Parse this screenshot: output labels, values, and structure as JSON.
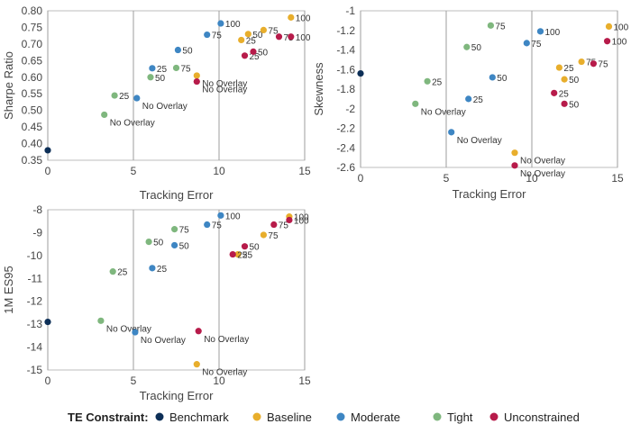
{
  "colors": {
    "Benchmark": "#0d2f57",
    "Baseline": "#e8ae2c",
    "Moderate": "#3e86c3",
    "Tight": "#7fb77e",
    "Unconstrained": "#b71b4a"
  },
  "legend": {
    "title": "TE Constraint:",
    "items": [
      "Benchmark",
      "Baseline",
      "Moderate",
      "Tight",
      "Unconstrained"
    ]
  },
  "chart_data": [
    {
      "type": "scatter",
      "title": "",
      "xlabel": "Tracking Error",
      "ylabel": "Sharpe Ratio",
      "xlim": [
        0,
        15
      ],
      "ylim": [
        0.35,
        0.8
      ],
      "xticks": [
        "0",
        "5",
        "10",
        "15"
      ],
      "yticks": [
        "0.35",
        "0.40",
        "0.45",
        "0.50",
        "0.55",
        "0.60",
        "0.65",
        "0.70",
        "0.75",
        "0.80"
      ],
      "grid": "vertical",
      "points": [
        {
          "series": "Benchmark",
          "x": 0.0,
          "y": 0.38,
          "label": ""
        },
        {
          "series": "Tight",
          "x": 3.3,
          "y": 0.487,
          "label": "No Overlay"
        },
        {
          "series": "Tight",
          "x": 3.9,
          "y": 0.545,
          "label": "25"
        },
        {
          "series": "Tight",
          "x": 6.0,
          "y": 0.6,
          "label": "50"
        },
        {
          "series": "Tight",
          "x": 7.5,
          "y": 0.628,
          "label": "75"
        },
        {
          "series": "Moderate",
          "x": 5.2,
          "y": 0.537,
          "label": "No Overlay"
        },
        {
          "series": "Moderate",
          "x": 6.1,
          "y": 0.627,
          "label": "25"
        },
        {
          "series": "Moderate",
          "x": 7.6,
          "y": 0.682,
          "label": "50"
        },
        {
          "series": "Moderate",
          "x": 9.3,
          "y": 0.728,
          "label": "75"
        },
        {
          "series": "Moderate",
          "x": 10.1,
          "y": 0.762,
          "label": "100"
        },
        {
          "series": "Baseline",
          "x": 8.7,
          "y": 0.605,
          "label": "No Overlay"
        },
        {
          "series": "Baseline",
          "x": 11.3,
          "y": 0.712,
          "label": "25"
        },
        {
          "series": "Baseline",
          "x": 11.7,
          "y": 0.73,
          "label": "50"
        },
        {
          "series": "Baseline",
          "x": 12.6,
          "y": 0.742,
          "label": "75"
        },
        {
          "series": "Baseline",
          "x": 14.2,
          "y": 0.78,
          "label": "100"
        },
        {
          "series": "Unconstrained",
          "x": 8.7,
          "y": 0.587,
          "label": "No Overlay"
        },
        {
          "series": "Unconstrained",
          "x": 11.5,
          "y": 0.665,
          "label": "25"
        },
        {
          "series": "Unconstrained",
          "x": 12.0,
          "y": 0.677,
          "label": "50"
        },
        {
          "series": "Unconstrained",
          "x": 13.5,
          "y": 0.722,
          "label": "75"
        },
        {
          "series": "Unconstrained",
          "x": 14.2,
          "y": 0.722,
          "label": "100"
        }
      ]
    },
    {
      "type": "scatter",
      "title": "",
      "xlabel": "Tracking Error",
      "ylabel": "Skewness",
      "xlim": [
        0,
        15
      ],
      "ylim": [
        -2.6,
        -1.0
      ],
      "xticks": [
        "0",
        "5",
        "10",
        "15"
      ],
      "yticks": [
        "-2.6",
        "-2.4",
        "-2.2",
        "-2",
        "-1.8",
        "-1.6",
        "-1.4",
        "-1.2",
        "-1"
      ],
      "grid": "vertical",
      "points": [
        {
          "series": "Benchmark",
          "x": 0.0,
          "y": -1.64,
          "label": ""
        },
        {
          "series": "Tight",
          "x": 3.2,
          "y": -1.95,
          "label": "No Overlay"
        },
        {
          "series": "Tight",
          "x": 3.9,
          "y": -1.72,
          "label": "25"
        },
        {
          "series": "Tight",
          "x": 6.2,
          "y": -1.37,
          "label": "50"
        },
        {
          "series": "Tight",
          "x": 7.6,
          "y": -1.15,
          "label": "75"
        },
        {
          "series": "Moderate",
          "x": 5.3,
          "y": -2.24,
          "label": "No Overlay"
        },
        {
          "series": "Moderate",
          "x": 6.3,
          "y": -1.9,
          "label": "25"
        },
        {
          "series": "Moderate",
          "x": 7.7,
          "y": -1.68,
          "label": "50"
        },
        {
          "series": "Moderate",
          "x": 9.7,
          "y": -1.33,
          "label": "75"
        },
        {
          "series": "Moderate",
          "x": 10.5,
          "y": -1.21,
          "label": "100"
        },
        {
          "series": "Baseline",
          "x": 9.0,
          "y": -2.45,
          "label": "No Overlay"
        },
        {
          "series": "Baseline",
          "x": 11.6,
          "y": -1.58,
          "label": "25"
        },
        {
          "series": "Baseline",
          "x": 11.9,
          "y": -1.7,
          "label": "50"
        },
        {
          "series": "Baseline",
          "x": 12.9,
          "y": -1.52,
          "label": "75"
        },
        {
          "series": "Baseline",
          "x": 14.5,
          "y": -1.16,
          "label": "100"
        },
        {
          "series": "Unconstrained",
          "x": 9.0,
          "y": -2.58,
          "label": "No Overlay"
        },
        {
          "series": "Unconstrained",
          "x": 11.3,
          "y": -1.84,
          "label": "25"
        },
        {
          "series": "Unconstrained",
          "x": 11.9,
          "y": -1.95,
          "label": "50"
        },
        {
          "series": "Unconstrained",
          "x": 13.6,
          "y": -1.54,
          "label": "75"
        },
        {
          "series": "Unconstrained",
          "x": 14.4,
          "y": -1.31,
          "label": "100"
        }
      ]
    },
    {
      "type": "scatter",
      "title": "",
      "xlabel": "Tracking Error",
      "ylabel": "1M ES95",
      "xlim": [
        0,
        15
      ],
      "ylim": [
        -15,
        -8
      ],
      "xticks": [
        "0",
        "5",
        "10",
        "15"
      ],
      "yticks": [
        "-15",
        "-14",
        "-13",
        "-12",
        "-11",
        "-10",
        "-9",
        "-8"
      ],
      "grid": "vertical",
      "points": [
        {
          "series": "Benchmark",
          "x": 0.0,
          "y": -12.9,
          "label": ""
        },
        {
          "series": "Tight",
          "x": 3.1,
          "y": -12.85,
          "label": "No Overlay"
        },
        {
          "series": "Tight",
          "x": 3.8,
          "y": -10.7,
          "label": "25"
        },
        {
          "series": "Tight",
          "x": 5.9,
          "y": -9.4,
          "label": "50"
        },
        {
          "series": "Tight",
          "x": 7.4,
          "y": -8.85,
          "label": "75"
        },
        {
          "series": "Moderate",
          "x": 5.1,
          "y": -13.35,
          "label": "No Overlay"
        },
        {
          "series": "Moderate",
          "x": 6.1,
          "y": -10.55,
          "label": "25"
        },
        {
          "series": "Moderate",
          "x": 7.4,
          "y": -9.55,
          "label": "50"
        },
        {
          "series": "Moderate",
          "x": 9.3,
          "y": -8.65,
          "label": "75"
        },
        {
          "series": "Moderate",
          "x": 10.1,
          "y": -8.25,
          "label": "100"
        },
        {
          "series": "Baseline",
          "x": 8.7,
          "y": -14.75,
          "label": "No Overlay"
        },
        {
          "series": "Baseline",
          "x": 11.1,
          "y": -9.95,
          "label": "25"
        },
        {
          "series": "Baseline",
          "x": 12.6,
          "y": -9.1,
          "label": "75"
        },
        {
          "series": "Baseline",
          "x": 14.1,
          "y": -8.3,
          "label": "100"
        },
        {
          "series": "Unconstrained",
          "x": 8.8,
          "y": -13.3,
          "label": "No Overlay"
        },
        {
          "series": "Unconstrained",
          "x": 10.8,
          "y": -9.95,
          "label": "25"
        },
        {
          "series": "Unconstrained",
          "x": 11.5,
          "y": -9.6,
          "label": "50"
        },
        {
          "series": "Unconstrained",
          "x": 13.2,
          "y": -8.65,
          "label": "75"
        },
        {
          "series": "Unconstrained",
          "x": 14.1,
          "y": -8.45,
          "label": "100"
        }
      ]
    }
  ]
}
